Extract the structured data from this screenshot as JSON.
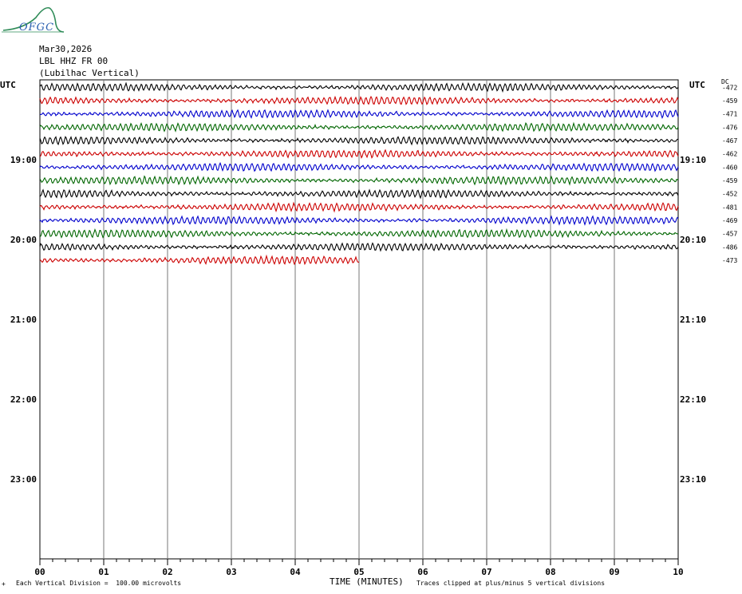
{
  "logo": {
    "text": "OFGC",
    "color": "#2a5fb0",
    "hill_color": "#2e8b57"
  },
  "header": {
    "date": "Mar30,2026",
    "station": "LBL HHZ FR 00",
    "location": "(Lubilhac Vertical)"
  },
  "left_utc": "UTC",
  "right_utc": "UTC",
  "dc_label": "DC",
  "footer": {
    "x_axis_label": "TIME (MINUTES)",
    "scale_note": "Each Vertical Division =  100.00 microvolts",
    "clip_note": "Traces clipped at plus/minus 5 vertical divisions",
    "corner_mark": "+"
  },
  "chart_data": {
    "type": "line",
    "title": "",
    "xlabel": "TIME (MINUTES)",
    "ylabel": "",
    "xlim": [
      0,
      10
    ],
    "x_ticks": [
      "00",
      "01",
      "02",
      "03",
      "04",
      "05",
      "06",
      "07",
      "08",
      "09",
      "10"
    ],
    "left_hour_labels": [
      "19:00",
      "20:00",
      "21:00",
      "22:00",
      "23:00"
    ],
    "right_hour_labels": [
      "19:10",
      "20:10",
      "21:10",
      "22:10",
      "23:10"
    ],
    "trace_colors": [
      "#000000",
      "#cc0000",
      "#0000cc",
      "#006600"
    ],
    "dc_offsets": [
      -472,
      -459,
      -471,
      -476,
      -467,
      -462,
      -460,
      -459,
      -452,
      -481,
      -469,
      -457,
      -486,
      -473
    ],
    "rows_per_hour": 6,
    "first_row_start": "18:00",
    "last_trace_end_minute": 5,
    "grid": true,
    "traces_clipped_at_divisions": 5,
    "division_microvolts": 100.0
  }
}
